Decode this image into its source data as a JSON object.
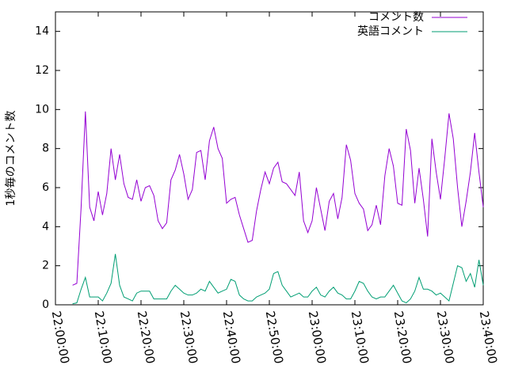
{
  "chart_data": {
    "type": "line",
    "ylabel": "1秒毎のコメント数",
    "x": [
      "22:04:00",
      "22:05:00",
      "22:06:00",
      "22:07:00",
      "22:08:00",
      "22:09:00",
      "22:10:00",
      "22:11:00",
      "22:12:00",
      "22:13:00",
      "22:14:00",
      "22:15:00",
      "22:16:00",
      "22:17:00",
      "22:18:00",
      "22:19:00",
      "22:20:00",
      "22:21:00",
      "22:22:00",
      "22:23:00",
      "22:24:00",
      "22:25:00",
      "22:26:00",
      "22:27:00",
      "22:28:00",
      "22:29:00",
      "22:30:00",
      "22:31:00",
      "22:32:00",
      "22:33:00",
      "22:34:00",
      "22:35:00",
      "22:36:00",
      "22:37:00",
      "22:38:00",
      "22:39:00",
      "22:40:00",
      "22:41:00",
      "22:42:00",
      "22:43:00",
      "22:44:00",
      "22:45:00",
      "22:46:00",
      "22:47:00",
      "22:48:00",
      "22:49:00",
      "22:50:00",
      "22:51:00",
      "22:52:00",
      "22:53:00",
      "22:54:00",
      "22:55:00",
      "22:56:00",
      "22:57:00",
      "22:58:00",
      "22:59:00",
      "23:00:00",
      "23:01:00",
      "23:02:00",
      "23:03:00",
      "23:04:00",
      "23:05:00",
      "23:06:00",
      "23:07:00",
      "23:08:00",
      "23:09:00",
      "23:10:00",
      "23:11:00",
      "23:12:00",
      "23:13:00",
      "23:14:00",
      "23:15:00",
      "23:16:00",
      "23:17:00",
      "23:18:00",
      "23:19:00",
      "23:20:00",
      "23:21:00",
      "23:22:00",
      "23:23:00",
      "23:24:00",
      "23:25:00",
      "23:26:00",
      "23:27:00",
      "23:28:00",
      "23:29:00",
      "23:30:00",
      "23:31:00",
      "23:32:00",
      "23:33:00",
      "23:34:00",
      "23:35:00",
      "23:36:00",
      "23:37:00",
      "23:38:00",
      "23:39:00",
      "23:40:00"
    ],
    "series": [
      {
        "name": "コメント数",
        "color": "#9400d3",
        "values": [
          1.0,
          1.1,
          5.0,
          9.9,
          5.0,
          4.3,
          5.8,
          4.6,
          5.7,
          8.0,
          6.4,
          7.7,
          6.2,
          5.5,
          5.4,
          6.4,
          5.3,
          6.0,
          6.1,
          5.6,
          4.3,
          3.9,
          4.2,
          6.4,
          6.9,
          7.7,
          6.7,
          5.4,
          5.9,
          7.8,
          7.9,
          6.4,
          8.4,
          9.1,
          8.0,
          7.5,
          5.2,
          5.4,
          5.5,
          4.6,
          3.9,
          3.2,
          3.3,
          4.8,
          5.9,
          6.8,
          6.2,
          7.0,
          7.3,
          6.3,
          6.2,
          5.9,
          5.6,
          6.8,
          4.3,
          3.7,
          4.3,
          6.0,
          4.9,
          3.8,
          5.3,
          5.7,
          4.4,
          5.5,
          8.2,
          7.4,
          5.7,
          5.2,
          4.9,
          3.8,
          4.1,
          5.1,
          4.1,
          6.6,
          8.0,
          7.1,
          5.2,
          5.1,
          9.0,
          7.9,
          5.2,
          7.0,
          5.4,
          3.5,
          8.5,
          6.8,
          5.4,
          7.5,
          9.8,
          8.5,
          6.0,
          4.0,
          5.3,
          6.8,
          8.8,
          6.8,
          5.0
        ]
      },
      {
        "name": "英語コメント",
        "color": "#009e73",
        "values": [
          0.05,
          0.1,
          0.8,
          1.4,
          0.4,
          0.4,
          0.4,
          0.2,
          0.6,
          1.1,
          2.6,
          1.0,
          0.4,
          0.3,
          0.2,
          0.6,
          0.7,
          0.7,
          0.7,
          0.3,
          0.3,
          0.3,
          0.3,
          0.7,
          1.0,
          0.8,
          0.6,
          0.5,
          0.5,
          0.6,
          0.8,
          0.7,
          1.2,
          0.9,
          0.6,
          0.7,
          0.8,
          1.3,
          1.2,
          0.5,
          0.3,
          0.2,
          0.2,
          0.4,
          0.5,
          0.6,
          0.8,
          1.6,
          1.7,
          1.0,
          0.7,
          0.4,
          0.5,
          0.6,
          0.4,
          0.4,
          0.7,
          0.9,
          0.5,
          0.4,
          0.7,
          0.9,
          0.6,
          0.5,
          0.3,
          0.3,
          0.7,
          1.2,
          1.1,
          0.7,
          0.4,
          0.3,
          0.4,
          0.4,
          0.7,
          1.0,
          0.6,
          0.2,
          0.1,
          0.3,
          0.7,
          1.4,
          0.8,
          0.8,
          0.7,
          0.5,
          0.6,
          0.4,
          0.2,
          1.1,
          2.0,
          1.9,
          1.2,
          1.6,
          0.9,
          2.3,
          1.0
        ]
      }
    ],
    "xlim": [
      "22:00:00",
      "23:40:00"
    ],
    "xticks": [
      "22:00:00",
      "22:10:00",
      "22:20:00",
      "22:30:00",
      "22:40:00",
      "22:50:00",
      "23:00:00",
      "23:10:00",
      "23:20:00",
      "23:30:00",
      "23:40:00"
    ],
    "ylim": [
      0,
      15
    ],
    "yticks": [
      0,
      2,
      4,
      6,
      8,
      10,
      12,
      14
    ],
    "grid": false,
    "legend": "top-right"
  }
}
